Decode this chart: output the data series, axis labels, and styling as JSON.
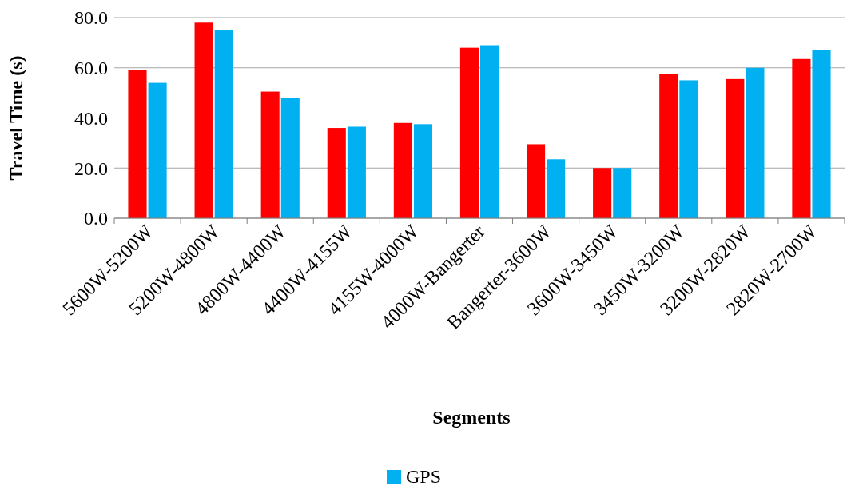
{
  "chart_data": {
    "type": "bar",
    "xlabel": "Segments",
    "ylabel": "Travel Time (s)",
    "categories": [
      "5600W-5200W",
      "5200W-4800W",
      "4800W-4400W",
      "4400W-4155W",
      "4155W-4000W",
      "4000W-Bangerter",
      "Bangerter-3600W",
      "3600W-3450W",
      "3450W-3200W",
      "3200W-2820W",
      "2820W-2700W"
    ],
    "series": [
      {
        "color": "#ff0000",
        "values": [
          59,
          78,
          50.5,
          36,
          38,
          68,
          29.5,
          20,
          57.5,
          55.5,
          63.5
        ]
      },
      {
        "name": "GPS",
        "color": "#00b0f0",
        "values": [
          54,
          75,
          48,
          36.5,
          37.5,
          69,
          23.5,
          20,
          55,
          60,
          67
        ]
      }
    ],
    "ylim": [
      0,
      80
    ],
    "yticks": [
      {
        "value": 0,
        "label": "0.0"
      },
      {
        "value": 20,
        "label": "20.0"
      },
      {
        "value": 40,
        "label": "40.0"
      },
      {
        "value": 60,
        "label": "60.0"
      },
      {
        "value": 80,
        "label": "80.0"
      }
    ],
    "grid": "y",
    "legend": "bottom"
  }
}
